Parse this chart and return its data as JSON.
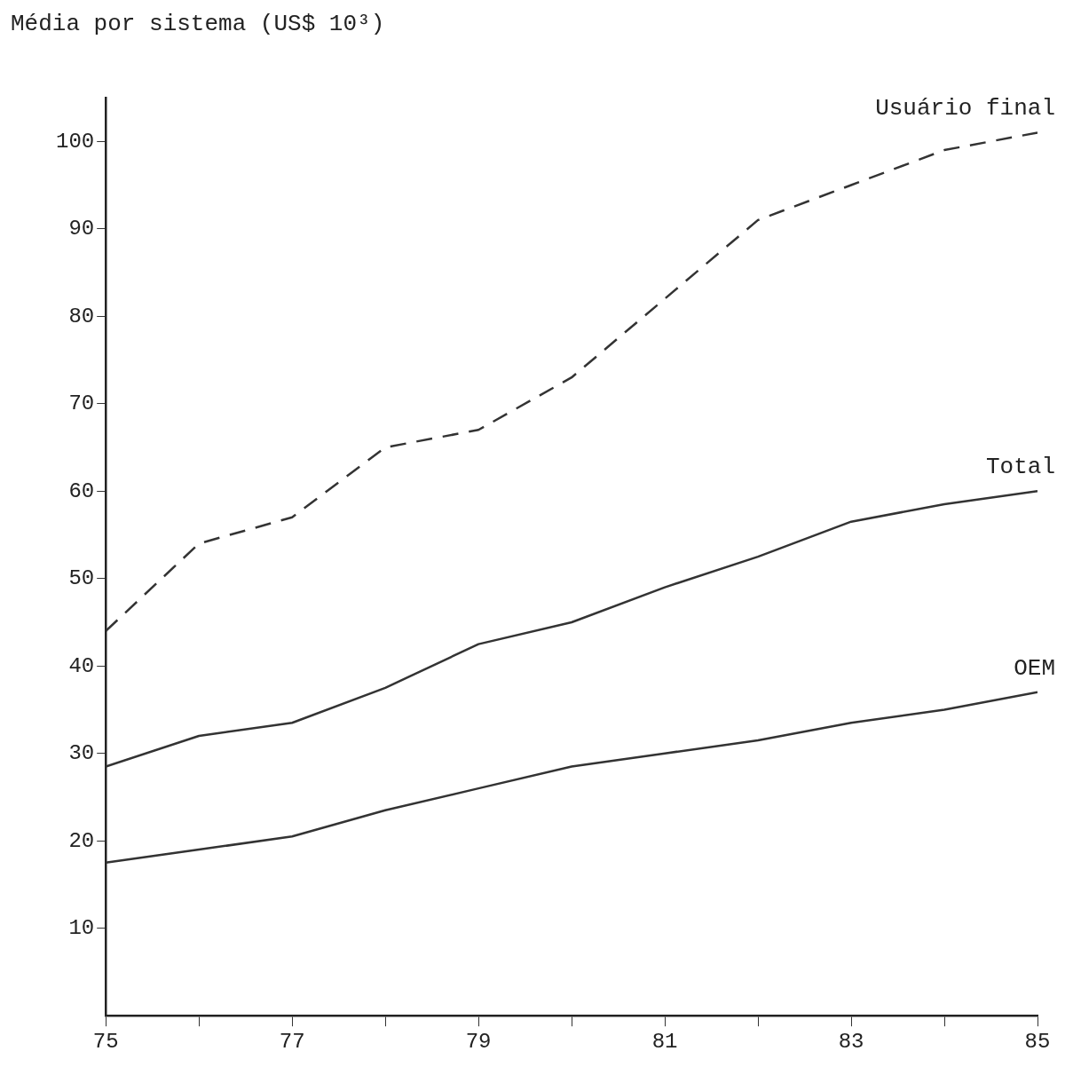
{
  "chart_data": {
    "type": "line",
    "ylabel": "Média por sistema (US$ 10³)",
    "x": [
      75,
      76,
      77,
      78,
      79,
      80,
      81,
      82,
      83,
      84,
      85
    ],
    "xlim": [
      75,
      85
    ],
    "xticks": [
      75,
      {
        "value": 76,
        "label": null
      },
      77,
      {
        "value": 78,
        "label": null
      },
      79,
      {
        "value": 80,
        "label": null
      },
      81,
      {
        "value": 82,
        "label": null
      },
      83,
      {
        "value": 84,
        "label": null
      },
      85
    ],
    "ylim": [
      0,
      105
    ],
    "yticks": [
      10,
      20,
      30,
      40,
      50,
      60,
      70,
      80,
      90,
      100
    ],
    "grid": false,
    "legend": false,
    "marker": "none",
    "series": [
      {
        "name": "Usuário final",
        "color": "#333333",
        "line_style": "dashed",
        "values": [
          44,
          54,
          57,
          65,
          67,
          73,
          82,
          91,
          95,
          99,
          101
        ]
      },
      {
        "name": "Total",
        "color": "#333333",
        "line_style": "solid",
        "values": [
          28.5,
          32,
          33.5,
          37.5,
          42.5,
          45,
          49,
          52.5,
          56.5,
          58.5,
          60
        ]
      },
      {
        "name": "OEM",
        "color": "#333333",
        "line_style": "solid",
        "values": [
          17.5,
          19,
          20.5,
          23.5,
          26,
          28.5,
          30,
          31.5,
          33.5,
          35,
          37
        ]
      }
    ]
  }
}
